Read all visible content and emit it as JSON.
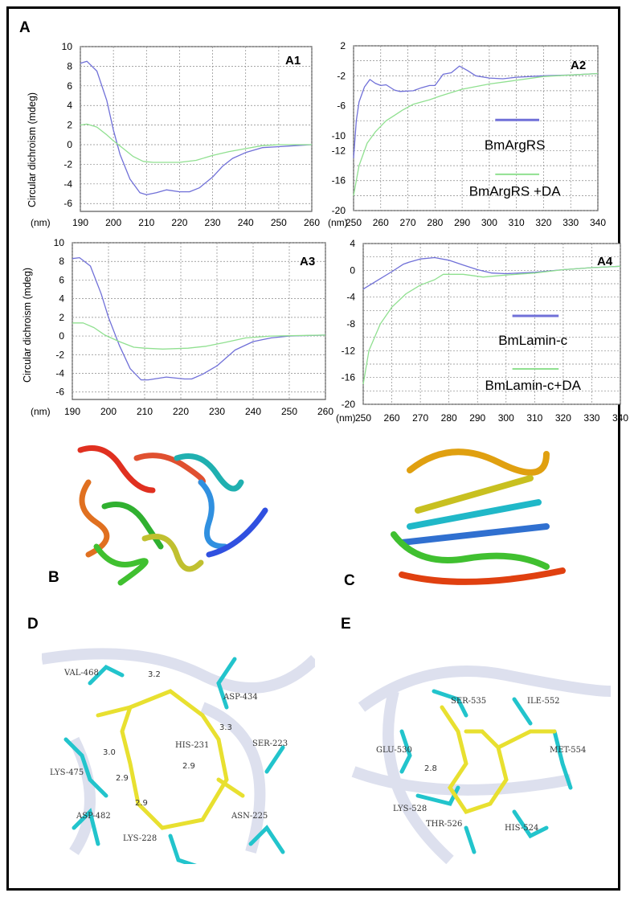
{
  "panel_labels": {
    "A": "A",
    "B": "B",
    "C": "C",
    "D": "D",
    "E": "E"
  },
  "colors": {
    "series_blue": "#7070d8",
    "series_green": "#90e090",
    "grid": "#999999",
    "stick_cyan": "#22c4cc",
    "ligand_yellow": "#e8e030",
    "oxygen": "#e03030",
    "nitrogen": "#2030e0",
    "ribbon": "#dde0ee"
  },
  "chart_data": [
    {
      "id": "A1",
      "type": "line",
      "title": "A1",
      "ylabel": "Circular dichroism (mdeg)",
      "xunit": "(nm)",
      "xlim": [
        190,
        260
      ],
      "ylim": [
        -6.8,
        10
      ],
      "grid": true,
      "xticks": [
        190,
        200,
        210,
        220,
        230,
        240,
        250,
        260
      ],
      "yticks": [
        10,
        8,
        6,
        4,
        2,
        0,
        -2,
        -4,
        -6
      ],
      "series": [
        {
          "color": "#7070d8",
          "points": [
            [
              190,
              8.3
            ],
            [
              192,
              8.5
            ],
            [
              195,
              7.5
            ],
            [
              198,
              4.5
            ],
            [
              200,
              1.5
            ],
            [
              202,
              -1
            ],
            [
              205,
              -3.5
            ],
            [
              208,
              -4.9
            ],
            [
              210,
              -5.1
            ],
            [
              213,
              -4.9
            ],
            [
              216,
              -4.6
            ],
            [
              220,
              -4.8
            ],
            [
              223,
              -4.8
            ],
            [
              226,
              -4.4
            ],
            [
              230,
              -3.3
            ],
            [
              233,
              -2.2
            ],
            [
              236,
              -1.4
            ],
            [
              240,
              -0.8
            ],
            [
              245,
              -0.3
            ],
            [
              250,
              -0.2
            ],
            [
              255,
              -0.1
            ],
            [
              260,
              0
            ]
          ]
        },
        {
          "color": "#90e090",
          "points": [
            [
              190,
              2.0
            ],
            [
              192,
              2.1
            ],
            [
              195,
              1.8
            ],
            [
              198,
              1.0
            ],
            [
              200,
              0.4
            ],
            [
              203,
              -0.4
            ],
            [
              206,
              -1.2
            ],
            [
              209,
              -1.7
            ],
            [
              212,
              -1.8
            ],
            [
              220,
              -1.8
            ],
            [
              225,
              -1.6
            ],
            [
              230,
              -1.1
            ],
            [
              235,
              -0.7
            ],
            [
              240,
              -0.4
            ],
            [
              245,
              -0.1
            ],
            [
              250,
              0
            ],
            [
              260,
              0
            ]
          ]
        }
      ]
    },
    {
      "id": "A2",
      "type": "line",
      "title": "A2",
      "xunit": "(nm)",
      "xlim": [
        250,
        340
      ],
      "ylim": [
        -20,
        2
      ],
      "grid": true,
      "xticks": [
        250,
        260,
        270,
        280,
        290,
        300,
        310,
        320,
        330,
        340
      ],
      "yticks": [
        2,
        -2,
        -6,
        -10,
        -12,
        -16,
        -20
      ],
      "legend": [
        "BmArgRS",
        "BmArgRS +DA"
      ],
      "legend_placement": "center-right",
      "series": [
        {
          "name": "BmArgRS",
          "color": "#7070d8",
          "points": [
            [
              250,
              -13
            ],
            [
              251,
              -8
            ],
            [
              252,
              -5.5
            ],
            [
              254,
              -3.5
            ],
            [
              256,
              -2.5
            ],
            [
              258,
              -3.0
            ],
            [
              260,
              -3.3
            ],
            [
              262,
              -3.2
            ],
            [
              265,
              -3.9
            ],
            [
              267,
              -4.1
            ],
            [
              272,
              -4.0
            ],
            [
              275,
              -3.6
            ],
            [
              278,
              -3.3
            ],
            [
              280,
              -3.3
            ],
            [
              283,
              -1.8
            ],
            [
              286,
              -1.6
            ],
            [
              289,
              -0.7
            ],
            [
              292,
              -1.3
            ],
            [
              295,
              -2.0
            ],
            [
              300,
              -2.3
            ],
            [
              305,
              -2.4
            ],
            [
              310,
              -2.2
            ],
            [
              320,
              -2.0
            ],
            [
              330,
              -1.9
            ],
            [
              340,
              -1.7
            ]
          ]
        },
        {
          "name": "BmArgRS +DA",
          "color": "#90e090",
          "points": [
            [
              250,
              -18
            ],
            [
              252,
              -14
            ],
            [
              255,
              -11
            ],
            [
              258,
              -9.5
            ],
            [
              262,
              -8
            ],
            [
              265,
              -7.3
            ],
            [
              268,
              -6.6
            ],
            [
              272,
              -5.8
            ],
            [
              278,
              -5.2
            ],
            [
              282,
              -4.7
            ],
            [
              290,
              -3.8
            ],
            [
              300,
              -3.1
            ],
            [
              310,
              -2.6
            ],
            [
              320,
              -2.1
            ],
            [
              330,
              -1.9
            ],
            [
              340,
              -1.7
            ]
          ]
        }
      ]
    },
    {
      "id": "A3",
      "type": "line",
      "title": "A3",
      "ylabel": "Circular dichroism (mdeg)",
      "xunit": "(nm)",
      "xlim": [
        190,
        260
      ],
      "ylim": [
        -6.8,
        10
      ],
      "grid": true,
      "xticks": [
        190,
        200,
        210,
        220,
        230,
        240,
        250,
        260
      ],
      "yticks": [
        10,
        8,
        6,
        4,
        2,
        0,
        -2,
        -4,
        -6
      ],
      "series": [
        {
          "color": "#7070d8",
          "points": [
            [
              190,
              8.3
            ],
            [
              192,
              8.4
            ],
            [
              195,
              7.5
            ],
            [
              198,
              4.5
            ],
            [
              200,
              2
            ],
            [
              203,
              -1
            ],
            [
              206,
              -3.5
            ],
            [
              209,
              -4.7
            ],
            [
              211,
              -4.7
            ],
            [
              216,
              -4.4
            ],
            [
              221,
              -4.6
            ],
            [
              223,
              -4.6
            ],
            [
              226,
              -4.1
            ],
            [
              230,
              -3.2
            ],
            [
              235,
              -1.5
            ],
            [
              240,
              -0.6
            ],
            [
              245,
              -0.2
            ],
            [
              250,
              0
            ],
            [
              260,
              0.1
            ]
          ]
        },
        {
          "color": "#90e090",
          "points": [
            [
              190,
              1.4
            ],
            [
              193,
              1.4
            ],
            [
              196,
              0.9
            ],
            [
              199,
              0.1
            ],
            [
              203,
              -0.6
            ],
            [
              207,
              -1.2
            ],
            [
              210,
              -1.3
            ],
            [
              215,
              -1.4
            ],
            [
              222,
              -1.3
            ],
            [
              227,
              -1.1
            ],
            [
              232,
              -0.7
            ],
            [
              238,
              -0.2
            ],
            [
              245,
              0
            ],
            [
              260,
              0.1
            ]
          ]
        }
      ]
    },
    {
      "id": "A4",
      "type": "line",
      "title": "A4",
      "xunit": "(nm)",
      "xlim": [
        250,
        340
      ],
      "ylim": [
        -20,
        4
      ],
      "grid": true,
      "xticks": [
        250,
        260,
        270,
        280,
        290,
        300,
        310,
        320,
        330,
        340
      ],
      "yticks": [
        4,
        0,
        -4,
        -8,
        -12,
        -16,
        -20
      ],
      "legend": [
        "BmLamin-c",
        "BmLamin-c+DA"
      ],
      "legend_placement": "center-right",
      "series": [
        {
          "name": "BmLamin-c",
          "color": "#7070d8",
          "points": [
            [
              250,
              -2.8
            ],
            [
              255,
              -1.5
            ],
            [
              260,
              -0.2
            ],
            [
              264,
              0.9
            ],
            [
              266,
              1.2
            ],
            [
              270,
              1.7
            ],
            [
              275,
              1.9
            ],
            [
              280,
              1.5
            ],
            [
              285,
              0.8
            ],
            [
              290,
              0.1
            ],
            [
              295,
              -0.4
            ],
            [
              300,
              -0.5
            ],
            [
              310,
              -0.3
            ],
            [
              320,
              0.1
            ],
            [
              330,
              0.4
            ],
            [
              340,
              0.6
            ]
          ]
        },
        {
          "name": "BmLamin-c+DA",
          "color": "#90e090",
          "points": [
            [
              250,
              -17
            ],
            [
              252,
              -12
            ],
            [
              256,
              -8
            ],
            [
              260,
              -5.5
            ],
            [
              265,
              -3.5
            ],
            [
              270,
              -2.2
            ],
            [
              275,
              -1.4
            ],
            [
              278,
              -0.6
            ],
            [
              285,
              -0.6
            ],
            [
              292,
              -1
            ],
            [
              300,
              -0.7
            ],
            [
              310,
              -0.4
            ],
            [
              320,
              0.1
            ],
            [
              330,
              0.4
            ],
            [
              340,
              0.6
            ]
          ]
        }
      ]
    }
  ],
  "panel_D": {
    "residues": [
      "VAL-468",
      "ASP-434",
      "SER-223",
      "HIS-231",
      "LYS-475",
      "ASP-482",
      "LYS-228",
      "ASN-225"
    ],
    "distances": [
      "3.2",
      "3.3",
      "3.0",
      "2.9",
      "2.9",
      "2.9"
    ]
  },
  "panel_E": {
    "residues": [
      "SER-535",
      "ILE-552",
      "GLU-530",
      "MET-554",
      "LYS-528",
      "THR-526",
      "HIS-524"
    ],
    "distances": [
      "2.8"
    ]
  }
}
